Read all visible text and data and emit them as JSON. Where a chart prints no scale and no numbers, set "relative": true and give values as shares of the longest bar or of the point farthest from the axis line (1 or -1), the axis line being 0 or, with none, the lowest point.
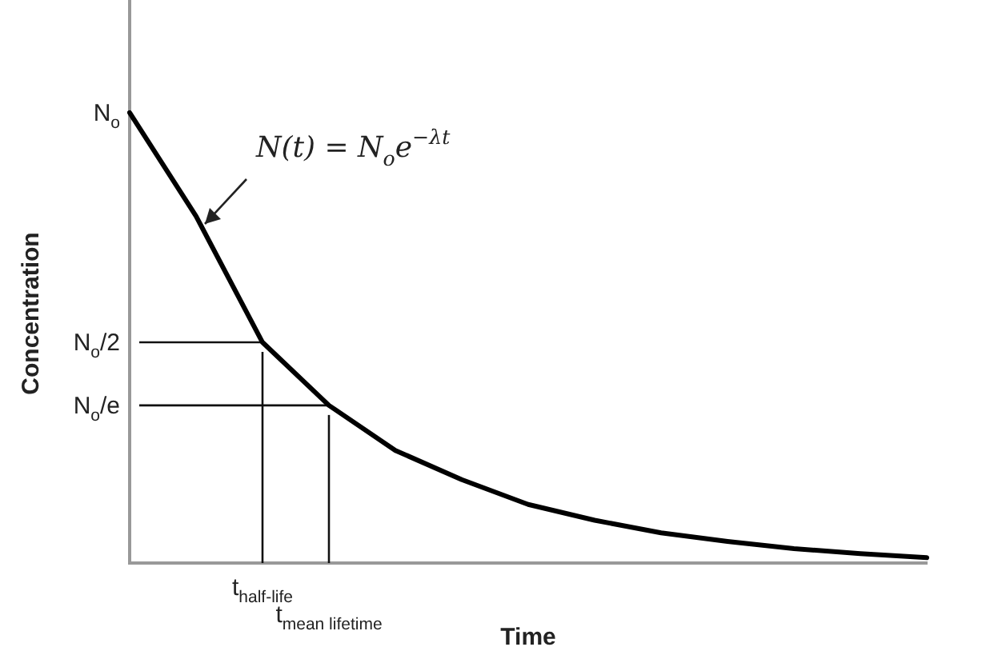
{
  "chart_data": {
    "type": "line",
    "relative": true,
    "xlabel": "Time",
    "ylabel": "Concentration",
    "categories": [
      null,
      null,
      "t$_{half-life}$",
      "t$_{mean lifetime}$",
      null,
      null,
      null,
      null,
      null,
      null,
      null,
      null,
      null
    ],
    "series": [
      {
        "color": "#000000",
        "values": [
          1,
          0.77,
          0.49,
          0.35,
          0.25,
          0.185,
          0.13,
          0.095,
          0.067,
          0.048,
          0.032,
          0.021,
          0.012
        ]
      }
    ],
    "ref_lines": [
      {
        "axis": "y",
        "value": 0.49,
        "label": "N$_{o}$/2"
      },
      {
        "axis": "y",
        "value": 0.35,
        "label": "N$_{o}$/e"
      },
      {
        "axis": "x",
        "value": "t$_{half-life}$"
      },
      {
        "axis": "x",
        "value": "t$_{mean lifetime}$"
      }
    ],
    "annotations": [
      "N(t) = N$_{o}$e$^{−λt}$",
      "N$_{o}$"
    ],
    "line_style": "solid"
  }
}
